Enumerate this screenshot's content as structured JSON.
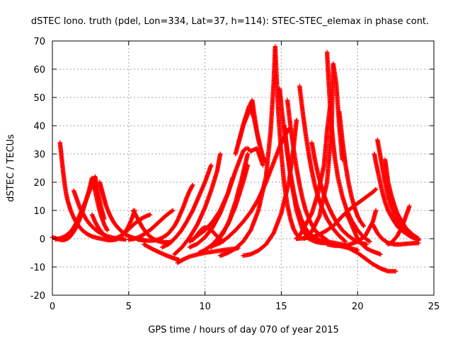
{
  "chart_data": {
    "type": "scatter",
    "title": "dSTEC Iono. truth (pdel, Lon=334, Lat=37, h=114): STEC-STEC_elemax in phase cont.",
    "xlabel": "GPS time / hours of day 070 of year 2015",
    "ylabel": "dSTEC  / TECUs",
    "xlim": [
      0,
      25
    ],
    "ylim": [
      -20,
      70
    ],
    "xticks": [
      0,
      5,
      10,
      15,
      20,
      25
    ],
    "yticks": [
      -20,
      -10,
      0,
      10,
      20,
      30,
      40,
      50,
      60,
      70
    ],
    "grid": true,
    "marker": "plus",
    "color": "#ff0000",
    "series": [
      {
        "x": [
          0.0,
          0.2,
          0.4,
          0.6,
          0.8,
          1.0,
          1.2,
          1.4,
          1.6,
          1.8,
          2.0,
          2.2,
          2.4,
          2.6,
          2.8,
          3.0,
          3.2,
          3.4,
          3.6
        ],
        "y": [
          0.5,
          0.2,
          -0.2,
          -0.5,
          -0.4,
          0.0,
          1.0,
          2.5,
          4.5,
          7.0,
          10.0,
          13.5,
          17.0,
          21.5,
          17.0,
          12.0,
          8.0,
          5.0,
          3.0
        ]
      },
      {
        "x": [
          0.5,
          0.6,
          0.7,
          0.8,
          0.9,
          1.0,
          1.2,
          1.4,
          1.6,
          1.8,
          2.0,
          2.3,
          2.6,
          3.0,
          3.4,
          3.8,
          4.2
        ],
        "y": [
          34.0,
          29.0,
          24.0,
          19.5,
          16.0,
          13.5,
          10.0,
          7.5,
          5.5,
          4.0,
          2.8,
          1.6,
          0.8,
          0.2,
          -0.2,
          -0.5,
          -0.3
        ]
      },
      {
        "x": [
          0.2,
          0.4,
          0.6,
          0.8,
          1.0,
          1.2,
          1.4,
          1.6,
          1.8,
          2.0,
          2.2,
          2.4,
          2.6,
          2.8,
          3.0,
          3.2,
          3.4
        ],
        "y": [
          -0.2,
          0.0,
          0.3,
          0.8,
          1.5,
          2.5,
          4.0,
          6.0,
          8.5,
          11.0,
          13.5,
          16.5,
          19.0,
          22.0,
          16.0,
          11.0,
          7.0
        ]
      },
      {
        "x": [
          1.4,
          1.5,
          1.6,
          1.7,
          1.8,
          2.0,
          2.2,
          2.4,
          2.6,
          2.8,
          3.0,
          3.3,
          3.6,
          4.0,
          4.4,
          4.8
        ],
        "y": [
          17.0,
          15.5,
          14.0,
          12.5,
          11.0,
          9.0,
          7.0,
          5.5,
          4.3,
          3.3,
          2.5,
          1.6,
          0.9,
          0.3,
          0.0,
          -0.3
        ]
      },
      {
        "x": [
          3.1,
          3.2,
          3.3,
          3.4,
          3.5,
          3.6,
          3.8,
          4.0,
          4.2,
          4.4,
          4.6,
          4.8,
          5.0,
          5.3,
          5.6,
          6.0
        ],
        "y": [
          20.0,
          18.0,
          16.0,
          14.0,
          12.0,
          10.5,
          8.0,
          6.0,
          4.5,
          3.3,
          2.3,
          1.5,
          0.9,
          0.3,
          -0.1,
          -0.4
        ]
      },
      {
        "x": [
          2.6,
          2.8,
          3.0,
          3.2,
          3.4,
          3.6,
          3.8,
          4.0,
          4.2,
          4.4,
          4.6,
          4.8,
          5.0,
          5.2,
          5.4
        ],
        "y": [
          8.5,
          6.0,
          4.0,
          2.5,
          1.3,
          0.5,
          0.0,
          -0.3,
          -0.2,
          0.3,
          1.2,
          2.5,
          4.5,
          7.0,
          10.0
        ]
      },
      {
        "x": [
          3.6,
          3.8,
          4.0,
          4.2,
          4.4,
          4.6,
          4.8,
          5.0,
          5.2,
          5.4,
          5.6,
          5.8,
          6.0,
          6.2,
          6.4
        ],
        "y": [
          -0.5,
          -0.4,
          -0.2,
          0.2,
          0.8,
          1.5,
          2.4,
          3.4,
          4.4,
          5.4,
          6.2,
          7.0,
          7.6,
          8.1,
          8.5
        ]
      },
      {
        "x": [
          5.3,
          5.5,
          5.7,
          5.9,
          6.1,
          6.3,
          6.6,
          6.9,
          7.2,
          7.5,
          7.8
        ],
        "y": [
          10.0,
          8.0,
          6.0,
          4.0,
          2.5,
          1.2,
          0.0,
          -0.8,
          -1.2,
          -1.3,
          -1.2
        ]
      },
      {
        "x": [
          5.0,
          5.3,
          5.6,
          5.9,
          6.2,
          6.5,
          6.8,
          7.1,
          7.4,
          7.7,
          7.9
        ],
        "y": [
          -0.3,
          -0.1,
          0.4,
          1.2,
          2.3,
          3.5,
          5.0,
          6.5,
          8.0,
          9.3,
          10.0
        ]
      },
      {
        "x": [
          5.6,
          6.0,
          6.4,
          6.8,
          7.2,
          7.6,
          8.0,
          8.2,
          8.4,
          8.6,
          8.8,
          9.0,
          9.2
        ],
        "y": [
          -0.3,
          -0.6,
          -0.7,
          -0.5,
          0.3,
          1.8,
          4.5,
          6.5,
          9.0,
          11.5,
          14.5,
          17.0,
          19.0
        ]
      },
      {
        "x": [
          6.0,
          6.5,
          7.0,
          7.5,
          8.0,
          8.3
        ],
        "y": [
          -2.0,
          -3.5,
          -4.8,
          -6.0,
          -7.0,
          -7.5
        ]
      },
      {
        "x": [
          7.2,
          7.6,
          8.0,
          8.4,
          8.8,
          9.2,
          9.6,
          10.0,
          10.2,
          10.4
        ],
        "y": [
          -3.0,
          -2.0,
          0.0,
          2.5,
          6.0,
          10.0,
          15.0,
          20.0,
          23.0,
          26.0
        ]
      },
      {
        "x": [
          8.2,
          8.6,
          9.0,
          9.5,
          10.0,
          10.5,
          11.0,
          11.5,
          12.0,
          12.2
        ],
        "y": [
          -8.5,
          -7.3,
          -6.3,
          -5.6,
          -5.0,
          -4.6,
          -4.2,
          -3.8,
          -3.5,
          -3.3
        ]
      },
      {
        "x": [
          8.0,
          8.5,
          9.0,
          9.5,
          10.0,
          10.4,
          10.8,
          11.0
        ],
        "y": [
          -5.5,
          -3.0,
          0.5,
          5.0,
          11.0,
          17.0,
          24.0,
          30.0
        ]
      },
      {
        "x": [
          9.0,
          9.5,
          10.0,
          10.5,
          11.0,
          11.5,
          11.8
        ],
        "y": [
          -3.0,
          -1.8,
          0.5,
          4.0,
          9.0,
          16.0,
          21.5
        ]
      },
      {
        "x": [
          9.2,
          9.4,
          9.6,
          9.8,
          10.0,
          10.2,
          10.4,
          10.6,
          10.8,
          11.0,
          11.2
        ],
        "y": [
          -0.5,
          0.8,
          2.2,
          3.4,
          4.0,
          3.8,
          3.2,
          2.0,
          0.8,
          -0.3,
          -1.0
        ]
      },
      {
        "x": [
          9.0,
          9.5,
          10.0,
          10.5,
          11.0,
          11.5,
          12.0,
          12.5,
          12.7
        ],
        "y": [
          -1.0,
          1.0,
          3.0,
          6.0,
          10.0,
          16.0,
          24.0,
          31.0,
          32.0
        ]
      },
      {
        "x": [
          9.6,
          10.0,
          10.5,
          11.0,
          11.5,
          12.0,
          12.5,
          12.8
        ],
        "y": [
          -5.0,
          -4.0,
          -2.0,
          1.0,
          5.0,
          11.5,
          20.0,
          26.0
        ]
      },
      {
        "x": [
          10.4,
          10.8,
          11.2,
          11.6,
          12.0,
          12.4,
          12.6,
          12.8
        ],
        "y": [
          -3.0,
          -1.0,
          2.0,
          6.5,
          13.0,
          21.0,
          25.5,
          30.0
        ]
      },
      {
        "x": [
          10.5,
          11.0,
          11.5,
          12.0,
          12.5,
          13.0,
          13.5,
          14.0,
          14.5,
          15.0,
          15.5
        ],
        "y": [
          -2.5,
          -1.5,
          0.5,
          3.0,
          6.0,
          9.5,
          14.0,
          20.0,
          27.0,
          34.0,
          39.0
        ]
      },
      {
        "x": [
          11.0,
          11.5,
          12.0,
          12.5,
          13.0,
          13.5,
          14.0,
          14.3,
          14.5,
          14.6
        ],
        "y": [
          -6.0,
          -5.0,
          -3.5,
          -1.0,
          3.0,
          10.0,
          22.0,
          38.0,
          55.0,
          68.0
        ]
      },
      {
        "x": [
          12.5,
          13.0,
          13.5,
          14.0,
          14.5,
          15.0,
          15.5,
          15.8,
          16.0
        ],
        "y": [
          -6.0,
          -5.5,
          -4.2,
          -2.0,
          2.0,
          9.0,
          20.0,
          32.0,
          42.0
        ]
      },
      {
        "x": [
          12.0,
          12.3,
          12.6,
          12.9,
          13.2,
          13.5,
          13.8,
          14.0
        ],
        "y": [
          30.0,
          36.0,
          42.0,
          47.0,
          43.0,
          35.0,
          29.0,
          27.0
        ]
      },
      {
        "x": [
          12.2,
          12.5,
          12.8,
          13.0,
          13.1,
          13.2,
          13.4,
          13.6
        ],
        "y": [
          34.0,
          40.0,
          44.0,
          48.0,
          49.0,
          45.0,
          38.0,
          33.0
        ]
      },
      {
        "x": [
          12.8,
          13.0,
          13.2,
          13.4,
          13.6,
          13.8
        ],
        "y": [
          32.0,
          31.0,
          31.5,
          32.0,
          29.0,
          26.0
        ]
      },
      {
        "x": [
          14.6,
          14.8,
          15.0,
          15.2,
          15.4,
          15.6,
          15.8,
          16.0,
          16.2
        ],
        "y": [
          68.0,
          45.0,
          30.0,
          19.0,
          12.0,
          7.0,
          3.5,
          1.5,
          0.5
        ]
      },
      {
        "x": [
          14.9,
          15.0,
          15.2,
          15.4,
          15.6,
          15.8,
          16.0,
          16.3,
          16.6,
          17.0,
          17.5
        ],
        "y": [
          53.0,
          47.0,
          38.0,
          30.0,
          23.0,
          17.0,
          12.0,
          7.0,
          3.5,
          1.0,
          -0.5
        ]
      },
      {
        "x": [
          15.4,
          15.6,
          15.8,
          16.0,
          16.2,
          16.4,
          16.6,
          16.9,
          17.2,
          17.6,
          18.0
        ],
        "y": [
          49.0,
          40.0,
          32.0,
          25.0,
          19.0,
          14.0,
          10.0,
          6.0,
          3.0,
          1.0,
          -0.5
        ]
      },
      {
        "x": [
          15.2,
          15.6,
          16.0,
          16.4,
          16.8,
          17.2,
          17.6,
          18.0,
          18.4,
          18.8,
          19.2,
          19.6,
          20.0
        ],
        "y": [
          40.0,
          22.0,
          10.0,
          3.0,
          0.0,
          -1.0,
          -1.5,
          -1.5,
          -2.0,
          -2.5,
          -3.0,
          -3.5,
          -4.0
        ]
      },
      {
        "x": [
          16.2,
          16.4,
          16.6,
          16.8,
          17.0,
          17.2,
          17.4,
          17.7,
          18.0,
          18.4,
          18.8,
          19.2
        ],
        "y": [
          54.0,
          45.0,
          37.0,
          30.0,
          24.0,
          19.0,
          15.0,
          10.5,
          7.0,
          3.5,
          1.0,
          -1.0
        ]
      },
      {
        "x": [
          16.0,
          16.3,
          16.6,
          17.0,
          17.4,
          17.8,
          18.0,
          18.2
        ],
        "y": [
          0.0,
          2.0,
          5.0,
          9.0,
          16.0,
          26.0,
          38.0,
          47.0
        ]
      },
      {
        "x": [
          16.5,
          17.0,
          17.5,
          18.0,
          18.3,
          18.4,
          18.6,
          18.8,
          19.0
        ],
        "y": [
          0.0,
          2.5,
          8.0,
          20.0,
          40.0,
          62.0,
          55.0,
          40.0,
          28.0
        ]
      },
      {
        "x": [
          17.0,
          17.2,
          17.4,
          17.6,
          17.8,
          18.0,
          18.3,
          18.6,
          19.0,
          19.4,
          19.8,
          20.2,
          20.6
        ],
        "y": [
          34.0,
          28.0,
          23.0,
          19.0,
          15.5,
          12.5,
          9.0,
          6.0,
          3.0,
          1.0,
          -0.5,
          -1.5,
          -2.0
        ]
      },
      {
        "x": [
          18.0,
          18.1,
          18.2,
          18.3,
          18.4,
          18.5,
          18.7,
          19.0,
          19.3,
          19.6,
          20.0,
          20.4,
          20.8
        ],
        "y": [
          66.0,
          56.0,
          47.0,
          40.0,
          34.0,
          29.0,
          22.0,
          15.0,
          10.0,
          6.5,
          3.0,
          0.5,
          -1.0
        ]
      },
      {
        "x": [
          18.8,
          18.9,
          19.0,
          19.1,
          19.2,
          19.4,
          19.6,
          19.8,
          20.0,
          20.2,
          20.4
        ],
        "y": [
          45.0,
          40.0,
          35.0,
          30.5,
          26.5,
          20.0,
          15.0,
          11.0,
          8.0,
          6.0,
          4.5
        ]
      },
      {
        "x": [
          17.0,
          17.5,
          18.0,
          18.5,
          19.0,
          19.5,
          20.0,
          20.5,
          21.0,
          21.5,
          22.0,
          22.5
        ],
        "y": [
          0.0,
          -0.5,
          -1.0,
          -1.5,
          -2.0,
          -3.5,
          -5.0,
          -7.0,
          -9.0,
          -10.5,
          -11.5,
          -11.5
        ]
      },
      {
        "x": [
          18.0,
          18.5,
          19.0,
          19.5,
          20.0,
          20.5,
          21.0,
          21.2
        ],
        "y": [
          -2.0,
          -2.5,
          -2.5,
          -2.0,
          -1.0,
          1.0,
          6.0,
          10.0
        ]
      },
      {
        "x": [
          19.2,
          19.4,
          19.6,
          19.8,
          20.0,
          20.3,
          20.6,
          21.0,
          21.5
        ],
        "y": [
          9.0,
          7.5,
          5.0,
          2.5,
          0.0,
          -2.0,
          -3.5,
          -4.5,
          -5.5
        ]
      },
      {
        "x": [
          16.0,
          16.5,
          17.0,
          17.5,
          18.0,
          18.5,
          19.0,
          19.5,
          20.0,
          20.5,
          21.0,
          21.2
        ],
        "y": [
          0.0,
          0.2,
          0.5,
          1.5,
          3.0,
          5.0,
          8.0,
          10.5,
          12.5,
          14.5,
          16.5,
          17.5
        ]
      },
      {
        "x": [
          21.1,
          21.2,
          21.4,
          21.6,
          21.8,
          22.0,
          22.3,
          22.6,
          23.0,
          23.4,
          23.8,
          24.0
        ],
        "y": [
          30.0,
          27.0,
          22.0,
          17.0,
          13.0,
          10.0,
          7.0,
          4.5,
          2.5,
          1.0,
          0.0,
          -0.5
        ]
      },
      {
        "x": [
          21.3,
          21.4,
          21.6,
          21.8,
          22.0,
          22.2,
          22.5,
          22.8,
          23.2,
          23.6,
          24.0
        ],
        "y": [
          35.0,
          32.0,
          26.0,
          20.0,
          15.0,
          11.5,
          7.5,
          4.5,
          2.0,
          0.5,
          -0.5
        ]
      },
      {
        "x": [
          21.8,
          21.9,
          22.0,
          22.2,
          22.4,
          22.6,
          22.9,
          23.2,
          23.6,
          24.0
        ],
        "y": [
          28.0,
          24.0,
          20.0,
          15.5,
          12.0,
          9.0,
          6.0,
          3.5,
          1.5,
          0.0
        ]
      },
      {
        "x": [
          21.0,
          21.3,
          21.6,
          22.0,
          22.4,
          22.8,
          23.2,
          23.6,
          24.0
        ],
        "y": [
          5.0,
          2.0,
          0.0,
          -1.5,
          -2.0,
          -2.0,
          -1.8,
          -1.6,
          -1.5
        ]
      },
      {
        "x": [
          22.0,
          22.3,
          22.6,
          22.9,
          23.1,
          23.3,
          23.4
        ],
        "y": [
          -2.0,
          -1.0,
          1.0,
          4.0,
          7.0,
          10.0,
          11.5
        ]
      }
    ]
  }
}
